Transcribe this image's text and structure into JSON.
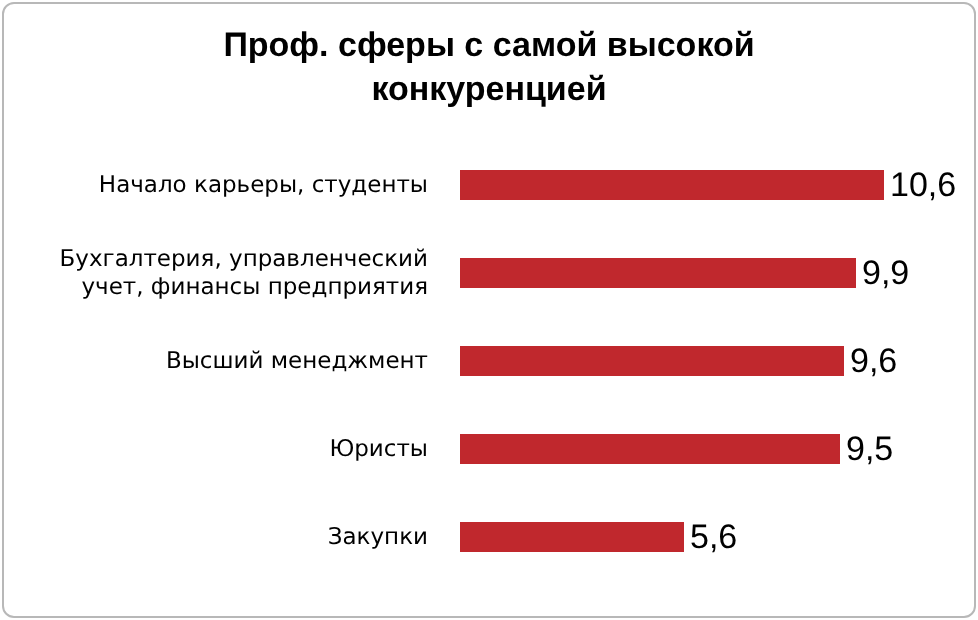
{
  "chart_data": {
    "type": "bar",
    "orientation": "horizontal",
    "title": "Проф. сферы с самой высокой конкуренцией",
    "categories": [
      "Начало карьеры, студенты",
      "Бухгалтерия, управленческий учет, финансы предприятия",
      "Высший менеджмент",
      "Юристы",
      "Закупки"
    ],
    "values": [
      10.6,
      9.9,
      9.6,
      9.5,
      5.6
    ],
    "value_labels": [
      "10,6",
      "9,9",
      "9,6",
      "9,5",
      "5,6"
    ],
    "color": "#c0282d",
    "tick_labels": "y"
  }
}
